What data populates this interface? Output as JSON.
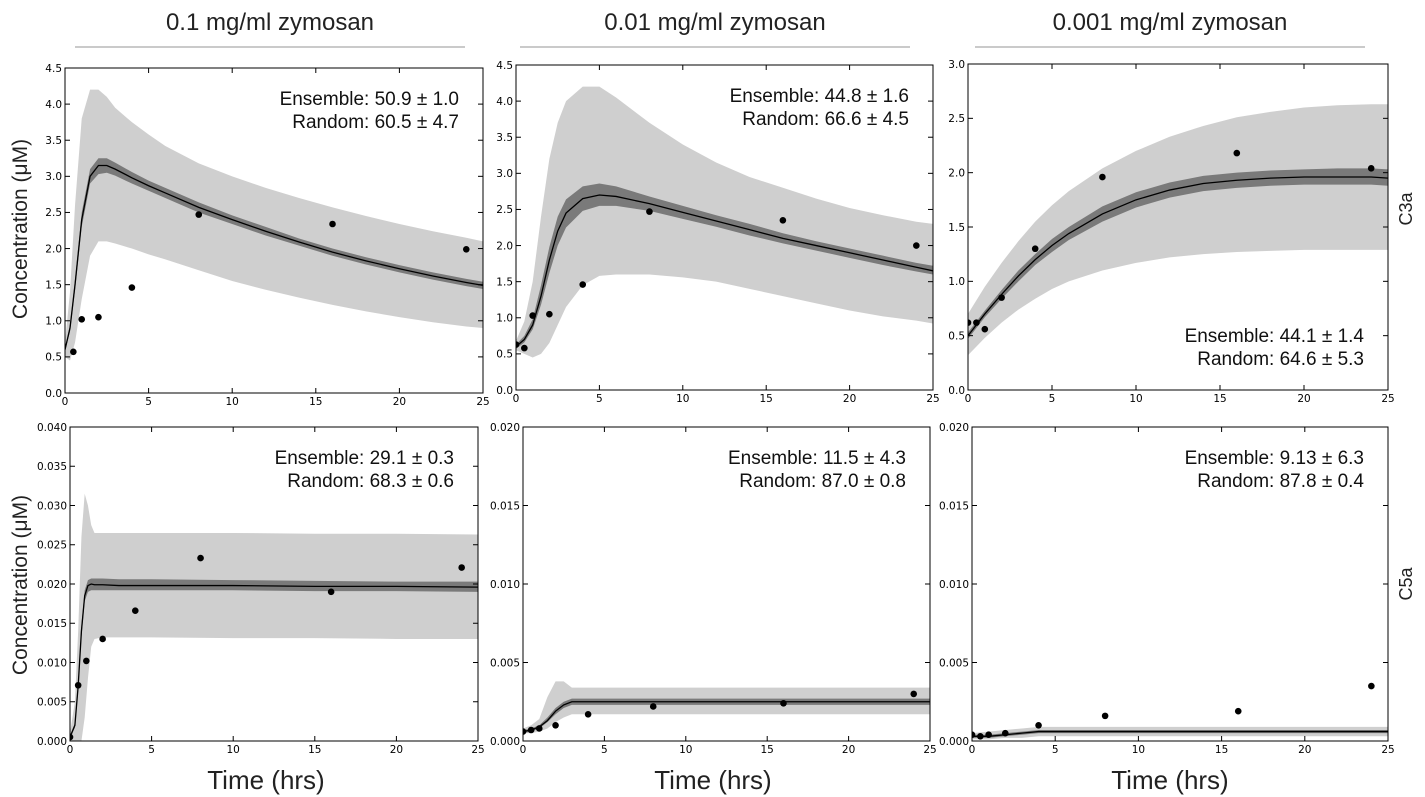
{
  "figure": {
    "column_titles": [
      "0.1 mg/ml zymosan",
      "0.01 mg/ml zymosan",
      "0.001 mg/ml zymosan"
    ],
    "row_labels": [
      "C3a",
      "C5a"
    ],
    "ylabel": "Concentration (μM)",
    "xlabel": "Time (hrs)"
  },
  "chart_data": [
    {
      "type": "line",
      "row": 0,
      "col": 0,
      "column_title": "0.1 mg/ml zymosan",
      "row_label": "C3a",
      "xlim": [
        0,
        25
      ],
      "ylim": [
        0,
        4.5
      ],
      "xticks": [
        0,
        5,
        10,
        15,
        20,
        25
      ],
      "xtick_labels": [
        "0",
        "5",
        "10",
        "15",
        "20",
        "25"
      ],
      "yticks": [
        0,
        0.5,
        1.0,
        1.5,
        2.0,
        2.5,
        3.0,
        3.5,
        4.0,
        4.5
      ],
      "ytick_labels": [
        "0.0",
        "0.5",
        "1.0",
        "1.5",
        "2.0",
        "2.5",
        "3.0",
        "3.5",
        "4.0",
        "4.5"
      ],
      "annotations": [
        "Ensemble: 50.9 ± 1.0",
        "Random: 60.5 ± 4.7"
      ],
      "annotation_position": "top-right",
      "mean_curve": {
        "x": [
          0,
          0.3,
          0.6,
          1.0,
          1.5,
          2,
          2.5,
          3,
          4,
          5,
          6,
          8,
          10,
          12,
          14,
          16,
          18,
          20,
          22,
          24,
          25
        ],
        "y": [
          0.6,
          0.9,
          1.5,
          2.4,
          3.0,
          3.15,
          3.15,
          3.1,
          2.98,
          2.87,
          2.77,
          2.57,
          2.4,
          2.24,
          2.09,
          1.95,
          1.83,
          1.72,
          1.62,
          1.53,
          1.49
        ]
      },
      "dark_band": {
        "lower": [
          0.58,
          0.85,
          1.42,
          2.3,
          2.9,
          3.03,
          3.05,
          3.01,
          2.9,
          2.8,
          2.7,
          2.5,
          2.34,
          2.18,
          2.04,
          1.9,
          1.78,
          1.67,
          1.57,
          1.48,
          1.44
        ],
        "upper": [
          0.62,
          0.95,
          1.58,
          2.5,
          3.1,
          3.25,
          3.25,
          3.19,
          3.06,
          2.94,
          2.84,
          2.64,
          2.46,
          2.3,
          2.14,
          2.0,
          1.88,
          1.77,
          1.67,
          1.58,
          1.54
        ]
      },
      "light_band": {
        "lower": [
          0.5,
          0.45,
          0.7,
          1.3,
          1.9,
          2.1,
          2.1,
          2.07,
          2.0,
          1.92,
          1.85,
          1.7,
          1.55,
          1.43,
          1.32,
          1.22,
          1.13,
          1.05,
          0.98,
          0.92,
          0.9
        ],
        "upper": [
          0.7,
          1.4,
          2.6,
          3.8,
          4.2,
          4.2,
          4.1,
          3.95,
          3.75,
          3.58,
          3.42,
          3.18,
          3.0,
          2.84,
          2.7,
          2.57,
          2.45,
          2.34,
          2.24,
          2.15,
          2.1
        ]
      },
      "points": {
        "x": [
          0.5,
          1,
          2,
          4,
          8,
          16,
          24
        ],
        "y": [
          0.57,
          1.02,
          1.05,
          1.46,
          2.47,
          2.34,
          1.99
        ]
      }
    },
    {
      "type": "line",
      "row": 0,
      "col": 1,
      "column_title": "0.01 mg/ml zymosan",
      "row_label": "C3a",
      "xlim": [
        0,
        25
      ],
      "ylim": [
        0,
        4.5
      ],
      "xticks": [
        0,
        5,
        10,
        15,
        20,
        25
      ],
      "xtick_labels": [
        "0",
        "5",
        "10",
        "15",
        "20",
        "25"
      ],
      "yticks": [
        0,
        0.5,
        1.0,
        1.5,
        2.0,
        2.5,
        3.0,
        3.5,
        4.0,
        4.5
      ],
      "ytick_labels": [
        "0.0",
        "0.5",
        "1.0",
        "1.5",
        "2.0",
        "2.5",
        "3.0",
        "3.5",
        "4.0",
        "4.5"
      ],
      "annotations": [
        "Ensemble: 44.8 ± 1.6",
        "Random: 66.6 ± 4.5"
      ],
      "annotation_position": "top-right",
      "mean_curve": {
        "x": [
          0,
          0.5,
          1,
          1.5,
          2,
          2.5,
          3,
          4,
          5,
          6,
          8,
          10,
          12,
          14,
          16,
          18,
          20,
          22,
          24,
          25
        ],
        "y": [
          0.6,
          0.7,
          0.9,
          1.3,
          1.8,
          2.2,
          2.45,
          2.65,
          2.7,
          2.68,
          2.58,
          2.46,
          2.34,
          2.22,
          2.1,
          2.0,
          1.9,
          1.8,
          1.7,
          1.65
        ]
      },
      "dark_band": {
        "lower": [
          0.57,
          0.66,
          0.84,
          1.18,
          1.62,
          2.0,
          2.25,
          2.48,
          2.55,
          2.55,
          2.48,
          2.37,
          2.26,
          2.14,
          2.03,
          1.93,
          1.83,
          1.73,
          1.64,
          1.6
        ],
        "upper": [
          0.63,
          0.75,
          0.98,
          1.45,
          1.98,
          2.4,
          2.64,
          2.82,
          2.86,
          2.82,
          2.68,
          2.55,
          2.42,
          2.3,
          2.17,
          2.06,
          1.96,
          1.86,
          1.76,
          1.72
        ]
      },
      "light_band": {
        "lower": [
          0.55,
          0.5,
          0.45,
          0.5,
          0.65,
          0.9,
          1.15,
          1.45,
          1.58,
          1.6,
          1.6,
          1.56,
          1.5,
          1.4,
          1.3,
          1.2,
          1.1,
          1.02,
          0.96,
          0.92
        ],
        "upper": [
          0.68,
          0.95,
          1.5,
          2.4,
          3.2,
          3.7,
          4.0,
          4.2,
          4.2,
          4.05,
          3.7,
          3.4,
          3.15,
          2.95,
          2.8,
          2.65,
          2.52,
          2.42,
          2.33,
          2.3
        ]
      },
      "points": {
        "x": [
          0,
          0.5,
          1,
          2,
          4,
          8,
          16,
          24
        ],
        "y": [
          0.63,
          0.58,
          1.03,
          1.05,
          1.46,
          2.47,
          2.35,
          2.0
        ]
      }
    },
    {
      "type": "line",
      "row": 0,
      "col": 2,
      "column_title": "0.001 mg/ml zymosan",
      "row_label": "C3a",
      "xlim": [
        0,
        25
      ],
      "ylim": [
        0,
        3.0
      ],
      "xticks": [
        0,
        5,
        10,
        15,
        20,
        25
      ],
      "xtick_labels": [
        "0",
        "5",
        "10",
        "15",
        "20",
        "25"
      ],
      "yticks": [
        0,
        0.5,
        1.0,
        1.5,
        2.0,
        2.5,
        3.0
      ],
      "ytick_labels": [
        "0.0",
        "0.5",
        "1.0",
        "1.5",
        "2.0",
        "2.5",
        "3.0"
      ],
      "annotations": [
        "Ensemble: 44.1 ± 1.4",
        "Random: 64.6 ± 5.3"
      ],
      "annotation_position": "bottom-right",
      "mean_curve": {
        "x": [
          0,
          1,
          2,
          3,
          4,
          5,
          6,
          8,
          10,
          12,
          14,
          16,
          18,
          20,
          22,
          24,
          25
        ],
        "y": [
          0.5,
          0.7,
          0.88,
          1.05,
          1.2,
          1.33,
          1.44,
          1.62,
          1.75,
          1.84,
          1.9,
          1.93,
          1.95,
          1.96,
          1.96,
          1.96,
          1.95
        ]
      },
      "dark_band": {
        "lower": [
          0.47,
          0.67,
          0.84,
          1.0,
          1.15,
          1.27,
          1.38,
          1.55,
          1.68,
          1.77,
          1.83,
          1.86,
          1.88,
          1.89,
          1.89,
          1.89,
          1.88
        ],
        "upper": [
          0.53,
          0.73,
          0.92,
          1.1,
          1.25,
          1.39,
          1.5,
          1.69,
          1.82,
          1.91,
          1.97,
          2.0,
          2.02,
          2.03,
          2.04,
          2.04,
          2.03
        ]
      },
      "light_band": {
        "lower": [
          0.32,
          0.48,
          0.62,
          0.74,
          0.84,
          0.93,
          1.0,
          1.1,
          1.17,
          1.22,
          1.25,
          1.27,
          1.28,
          1.29,
          1.29,
          1.29,
          1.29
        ],
        "upper": [
          0.7,
          0.95,
          1.17,
          1.37,
          1.55,
          1.7,
          1.83,
          2.04,
          2.2,
          2.33,
          2.43,
          2.51,
          2.56,
          2.6,
          2.62,
          2.63,
          2.63
        ]
      },
      "points": {
        "x": [
          0,
          0.5,
          1,
          2,
          4,
          8,
          16,
          24
        ],
        "y": [
          0.62,
          0.62,
          0.56,
          0.85,
          1.3,
          1.96,
          2.18,
          2.04
        ]
      }
    },
    {
      "type": "line",
      "row": 1,
      "col": 0,
      "column_title": "0.1 mg/ml zymosan",
      "row_label": "C5a",
      "xlim": [
        0,
        25
      ],
      "ylim": [
        0,
        0.04
      ],
      "xticks": [
        0,
        5,
        10,
        15,
        20,
        25
      ],
      "xtick_labels": [
        "0",
        "5",
        "10",
        "15",
        "20",
        "25"
      ],
      "yticks": [
        0,
        0.005,
        0.01,
        0.015,
        0.02,
        0.025,
        0.03,
        0.035,
        0.04
      ],
      "ytick_labels": [
        "0.000",
        "0.005",
        "0.010",
        "0.015",
        "0.020",
        "0.025",
        "0.030",
        "0.035",
        "0.040"
      ],
      "annotations": [
        "Ensemble: 29.1 ± 0.3",
        "Random: 68.3 ± 0.6"
      ],
      "annotation_position": "top-right",
      "mean_curve": {
        "x": [
          0,
          0.3,
          0.5,
          0.7,
          0.9,
          1.1,
          1.3,
          1.5,
          2,
          3,
          5,
          10,
          15,
          20,
          25
        ],
        "y": [
          0.0005,
          0.002,
          0.007,
          0.014,
          0.0185,
          0.0198,
          0.02,
          0.0199,
          0.0199,
          0.0198,
          0.0198,
          0.0198,
          0.0197,
          0.0197,
          0.0196
        ]
      },
      "dark_band": {
        "lower": [
          0.0003,
          0.0017,
          0.0064,
          0.0132,
          0.0178,
          0.019,
          0.0192,
          0.0192,
          0.0192,
          0.0192,
          0.0192,
          0.0192,
          0.0191,
          0.0191,
          0.019
        ],
        "upper": [
          0.0007,
          0.0023,
          0.0076,
          0.0148,
          0.0192,
          0.0205,
          0.0207,
          0.0207,
          0.0207,
          0.0206,
          0.0206,
          0.0205,
          0.0204,
          0.0203,
          0.0203
        ]
      },
      "light_band": {
        "lower": [
          0.0,
          0.0,
          0.0,
          0.0,
          0.003,
          0.008,
          0.012,
          0.013,
          0.0132,
          0.0132,
          0.0132,
          0.0131,
          0.0131,
          0.013,
          0.013
        ],
        "upper": [
          0.001,
          0.005,
          0.014,
          0.026,
          0.0315,
          0.03,
          0.0275,
          0.0265,
          0.0265,
          0.0265,
          0.0265,
          0.0265,
          0.0264,
          0.0264,
          0.0263
        ]
      },
      "points": {
        "x": [
          0,
          0.5,
          1,
          2,
          4,
          8,
          16,
          24
        ],
        "y": [
          0.0005,
          0.0071,
          0.0102,
          0.013,
          0.0166,
          0.0233,
          0.019,
          0.0221
        ]
      }
    },
    {
      "type": "line",
      "row": 1,
      "col": 1,
      "column_title": "0.01 mg/ml zymosan",
      "row_label": "C5a",
      "xlim": [
        0,
        25
      ],
      "ylim": [
        0,
        0.02
      ],
      "xticks": [
        0,
        5,
        10,
        15,
        20,
        25
      ],
      "xtick_labels": [
        "0",
        "5",
        "10",
        "15",
        "20",
        "25"
      ],
      "yticks": [
        0,
        0.005,
        0.01,
        0.015,
        0.02
      ],
      "ytick_labels": [
        "0.000",
        "0.005",
        "0.010",
        "0.015",
        "0.020"
      ],
      "annotations": [
        "Ensemble: 11.5 ± 4.3",
        "Random: 87.0 ± 0.8"
      ],
      "annotation_position": "top-right",
      "mean_curve": {
        "x": [
          0,
          0.5,
          1,
          1.5,
          2,
          2.5,
          3,
          4,
          5,
          10,
          15,
          20,
          25
        ],
        "y": [
          0.0006,
          0.0007,
          0.0009,
          0.0013,
          0.0019,
          0.0023,
          0.0025,
          0.0025,
          0.0025,
          0.0025,
          0.0025,
          0.0025,
          0.0025
        ]
      },
      "dark_band": {
        "lower": [
          0.0005,
          0.0006,
          0.0008,
          0.0012,
          0.0017,
          0.0021,
          0.0023,
          0.0023,
          0.0023,
          0.0023,
          0.0023,
          0.0023,
          0.0023
        ],
        "upper": [
          0.0007,
          0.0008,
          0.001,
          0.0015,
          0.0021,
          0.0025,
          0.0027,
          0.0027,
          0.0027,
          0.0027,
          0.0027,
          0.0027,
          0.0027
        ]
      },
      "light_band": {
        "lower": [
          0.0005,
          0.0005,
          0.0006,
          0.0008,
          0.0012,
          0.0015,
          0.0017,
          0.0017,
          0.0017,
          0.0017,
          0.0017,
          0.0017,
          0.0017
        ],
        "upper": [
          0.0008,
          0.001,
          0.0014,
          0.0028,
          0.0038,
          0.0038,
          0.0034,
          0.0034,
          0.0034,
          0.0034,
          0.0034,
          0.0034,
          0.0034
        ]
      },
      "points": {
        "x": [
          0,
          0.5,
          1,
          2,
          4,
          8,
          16,
          24
        ],
        "y": [
          0.0006,
          0.0007,
          0.0008,
          0.001,
          0.0017,
          0.0022,
          0.0024,
          0.003
        ]
      }
    },
    {
      "type": "line",
      "row": 1,
      "col": 2,
      "column_title": "0.001 mg/ml zymosan",
      "row_label": "C5a",
      "xlim": [
        0,
        25
      ],
      "ylim": [
        0,
        0.02
      ],
      "xticks": [
        0,
        5,
        10,
        15,
        20,
        25
      ],
      "xtick_labels": [
        "0",
        "5",
        "10",
        "15",
        "20",
        "25"
      ],
      "yticks": [
        0,
        0.005,
        0.01,
        0.015,
        0.02
      ],
      "ytick_labels": [
        "0.000",
        "0.005",
        "0.010",
        "0.015",
        "0.020"
      ],
      "annotations": [
        "Ensemble: 9.13 ± 6.3",
        "Random: 87.8 ± 0.4"
      ],
      "annotation_position": "top-right",
      "mean_curve": {
        "x": [
          0,
          1,
          2,
          3,
          4,
          5,
          6,
          8,
          10,
          15,
          20,
          25
        ],
        "y": [
          0.0003,
          0.0003,
          0.0004,
          0.0005,
          0.0006,
          0.0006,
          0.0006,
          0.0006,
          0.0006,
          0.0006,
          0.0006,
          0.0006
        ]
      },
      "dark_band": {
        "lower": [
          0.0002,
          0.0002,
          0.0003,
          0.0004,
          0.0005,
          0.0005,
          0.0005,
          0.0005,
          0.0005,
          0.0005,
          0.0005,
          0.0005
        ],
        "upper": [
          0.0004,
          0.0004,
          0.0005,
          0.0006,
          0.0007,
          0.0007,
          0.0007,
          0.0007,
          0.0007,
          0.0007,
          0.0007,
          0.0007
        ]
      },
      "light_band": {
        "lower": [
          0.0001,
          0.0001,
          0.0002,
          0.0002,
          0.0003,
          0.0003,
          0.0003,
          0.0003,
          0.0003,
          0.0003,
          0.0003,
          0.0003
        ],
        "upper": [
          0.0005,
          0.0006,
          0.0007,
          0.0008,
          0.0009,
          0.0009,
          0.0009,
          0.0009,
          0.0009,
          0.0009,
          0.0009,
          0.0009
        ]
      },
      "points": {
        "x": [
          0,
          0.5,
          1,
          2,
          4,
          8,
          16,
          24
        ],
        "y": [
          0.0004,
          0.0003,
          0.0004,
          0.0005,
          0.001,
          0.0016,
          0.0019,
          0.0035
        ]
      }
    }
  ]
}
